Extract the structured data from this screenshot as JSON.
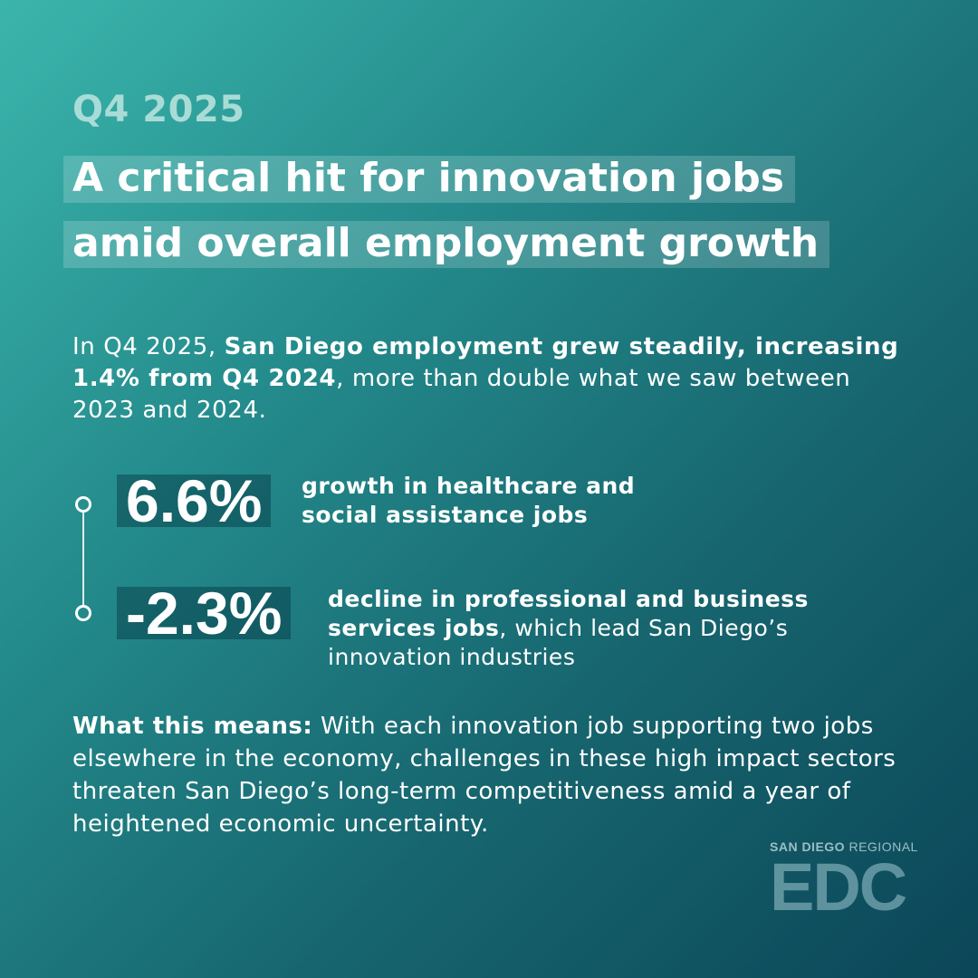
{
  "header": {
    "eyebrow": "Q4 2025",
    "headline_line1": "A critical hit for innovation jobs",
    "headline_line2": "amid overall employment growth"
  },
  "intro": {
    "lead": "In Q4 2025, ",
    "bold": "San Diego employment grew steadily, increasing 1.4% from Q4 2024",
    "rest": ", more than double what we saw between 2023 and 2024."
  },
  "stats": [
    {
      "value": "6.6%",
      "label_bold": "growth in healthcare and social assistance jobs",
      "label_rest": ""
    },
    {
      "value": "-2.3%",
      "label_bold": "decline in professional and business services jobs",
      "label_rest": ", which lead San Diego’s innovation industries"
    }
  ],
  "means": {
    "label": "What this means:",
    "text": " With each innovation job supporting two jobs elsewhere in the economy, challenges in these high impact sectors threaten San Diego’s long-term competitiveness amid a year of heightened economic uncertainty."
  },
  "logo": {
    "top_bold": "SAN DIEGO",
    "top_rest": " REGIONAL",
    "mark": "EDC"
  }
}
